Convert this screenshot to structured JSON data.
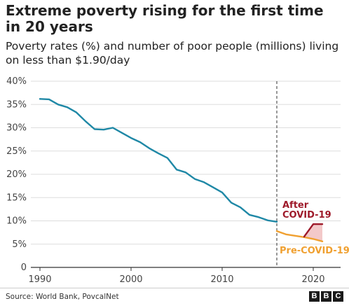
{
  "header": {
    "title": "Extreme poverty rising for the first time in 20 years",
    "subtitle": "Poverty rates (%) and number of poor people (millions) living on less than $1.90/day"
  },
  "footer": {
    "source": "Source: World Bank, PovcalNet",
    "logo": [
      "B",
      "B",
      "C"
    ]
  },
  "chart_data": {
    "type": "line",
    "title": "Extreme poverty rising for the first time in 20 years",
    "subtitle": "Poverty rates (%) and number of poor people (millions) living on less than $1.90/day",
    "xlabel": "",
    "ylabel": "",
    "xlim": [
      1989,
      2023
    ],
    "ylim": [
      0,
      40
    ],
    "x_ticks": [
      1990,
      2000,
      2010,
      2020
    ],
    "x_tick_labels": [
      "1990",
      "2000",
      "2010",
      "2020"
    ],
    "y_ticks": [
      0,
      5,
      10,
      15,
      20,
      25,
      30,
      35,
      40
    ],
    "y_tick_labels": [
      "0",
      "5%",
      "10%",
      "15%",
      "20%",
      "25%",
      "30%",
      "35%",
      "40%"
    ],
    "grid": true,
    "reference_line": {
      "x": 2016,
      "style": "dashed"
    },
    "series": [
      {
        "color": "#1f88a6",
        "x": [
          1990,
          1991,
          1992,
          1993,
          1994,
          1995,
          1996,
          1997,
          1998,
          1999,
          2000,
          2001,
          2002,
          2003,
          2004,
          2005,
          2006,
          2007,
          2008,
          2009,
          2010,
          2011,
          2012,
          2013,
          2014,
          2015,
          2016
        ],
        "y": [
          36.2,
          36.1,
          35.0,
          34.4,
          33.3,
          31.4,
          29.7,
          29.6,
          30.0,
          28.9,
          27.8,
          26.9,
          25.6,
          24.5,
          23.5,
          21.0,
          20.4,
          19.0,
          18.3,
          17.2,
          16.1,
          13.9,
          12.9,
          11.3,
          10.8,
          10.1,
          9.8
        ]
      },
      {
        "name": "Pre-COVID-19",
        "color": "#f0a030",
        "x": [
          2016,
          2017,
          2018,
          2019,
          2020,
          2021
        ],
        "y": [
          7.8,
          7.1,
          6.8,
          6.5,
          6.1,
          5.6
        ]
      },
      {
        "name": "After COVID-19",
        "color": "#9e1a2a",
        "x": [
          2019,
          2020,
          2021
        ],
        "y": [
          6.6,
          9.3,
          9.3
        ]
      }
    ],
    "band": {
      "color": "#f3c9c9",
      "x": [
        2019,
        2020,
        2021
      ],
      "lower": [
        6.5,
        6.1,
        5.6
      ],
      "upper": [
        6.6,
        9.3,
        9.3
      ]
    },
    "annotations": [
      {
        "text": "After",
        "color": "#9e1a2a"
      },
      {
        "text": "COVID-19",
        "color": "#9e1a2a"
      },
      {
        "text": "Pre-COVID-19",
        "color": "#f0a030"
      }
    ]
  }
}
